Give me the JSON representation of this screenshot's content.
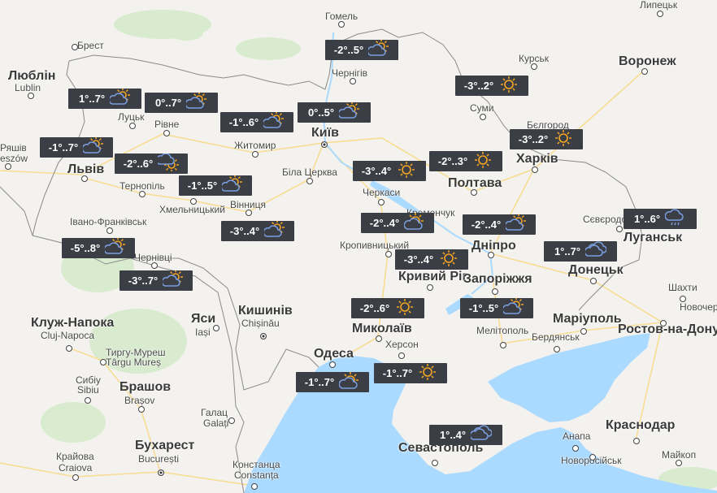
{
  "map": {
    "colors": {
      "land": "#f3f2ee",
      "water": "#aadaff",
      "forest": "#cfe7c4",
      "road": "#fbe2a0",
      "border": "#8a8a8a",
      "label_bg": "#3b3f45",
      "sun": "#f5a623",
      "cloud": "#7a9ee0"
    },
    "cities": [
      {
        "name": "Гомель"
      },
      {
        "name": "Брест"
      },
      {
        "name": "Люблін"
      },
      {
        "name": "Lublin"
      },
      {
        "name": "Луцьк"
      },
      {
        "name": "Рівне"
      },
      {
        "name": "Чернігів"
      },
      {
        "name": "Київ"
      },
      {
        "name": "Житомир"
      },
      {
        "name": "Біла Церква"
      },
      {
        "name": "Ряшів"
      },
      {
        "name": "eszów"
      },
      {
        "name": "Львів"
      },
      {
        "name": "Тернопіль"
      },
      {
        "name": "Хмельницький"
      },
      {
        "name": "Вінниця"
      },
      {
        "name": "Івано-Франківськ"
      },
      {
        "name": "Чернівці"
      },
      {
        "name": "Курськ"
      },
      {
        "name": "Воронеж"
      },
      {
        "name": "Липецьк"
      },
      {
        "name": "Суми"
      },
      {
        "name": "Бєлгород"
      },
      {
        "name": "Харків"
      },
      {
        "name": "Полтава"
      },
      {
        "name": "Черкаси"
      },
      {
        "name": "Кременчук"
      },
      {
        "name": "Сєвєродонецьк"
      },
      {
        "name": "Луганськ"
      },
      {
        "name": "Кропивницький"
      },
      {
        "name": "Дніпро"
      },
      {
        "name": "Донецьк"
      },
      {
        "name": "Кривий Ріг"
      },
      {
        "name": "Запоріжжя"
      },
      {
        "name": "Шахти"
      },
      {
        "name": "Новочеркаськ"
      },
      {
        "name": "Кишинів"
      },
      {
        "name": "Chișinău"
      },
      {
        "name": "Яси"
      },
      {
        "name": "Iași"
      },
      {
        "name": "Миколаїв"
      },
      {
        "name": "Маріуполь"
      },
      {
        "name": "Ростов-на-Дону"
      },
      {
        "name": "Мелітополь"
      },
      {
        "name": "Бердянськ"
      },
      {
        "name": "Херсон"
      },
      {
        "name": "Клуж-Напока"
      },
      {
        "name": "Cluj-Napoca"
      },
      {
        "name": "Тиргу-Муреш"
      },
      {
        "name": "Târgu Mureș"
      },
      {
        "name": "Одеса"
      },
      {
        "name": "Сибіу"
      },
      {
        "name": "Sibiu"
      },
      {
        "name": "Брашов"
      },
      {
        "name": "Brașov"
      },
      {
        "name": "Галац"
      },
      {
        "name": "Galați"
      },
      {
        "name": "Краснодар"
      },
      {
        "name": "Анапа"
      },
      {
        "name": "Бухарест"
      },
      {
        "name": "București"
      },
      {
        "name": "Севастополь"
      },
      {
        "name": "Крайова"
      },
      {
        "name": "Craiova"
      },
      {
        "name": "Констанца"
      },
      {
        "name": "Constanța"
      },
      {
        "name": "Новоросійськ"
      },
      {
        "name": "Майкоп"
      }
    ],
    "forecasts": [
      {
        "temp": "1°..7°",
        "icon": "partly-cloudy-icon"
      },
      {
        "temp": "0°..7°",
        "icon": "partly-cloudy-icon"
      },
      {
        "temp": "-1°..6°",
        "icon": "partly-cloudy-icon"
      },
      {
        "temp": "0°..5°",
        "icon": "partly-cloudy-icon"
      },
      {
        "temp": "-2°..5°",
        "icon": "partly-cloudy-icon"
      },
      {
        "temp": "-1°..7°",
        "icon": "partly-cloudy-icon"
      },
      {
        "temp": "-2°..6°",
        "icon": "cloud-sun-below-icon"
      },
      {
        "temp": "-1°..5°",
        "icon": "partly-cloudy-icon"
      },
      {
        "temp": "-3°..4°",
        "icon": "partly-cloudy-icon"
      },
      {
        "temp": "-5°..8°",
        "icon": "partly-cloudy-icon"
      },
      {
        "temp": "-3°..7°",
        "icon": "partly-cloudy-icon"
      },
      {
        "temp": "-3°..2°",
        "icon": "sun-icon"
      },
      {
        "temp": "-3°..2°",
        "icon": "sun-icon"
      },
      {
        "temp": "-2°..3°",
        "icon": "sun-icon"
      },
      {
        "temp": "-3°..4°",
        "icon": "sun-icon"
      },
      {
        "temp": "-2°..4°",
        "icon": "sun-small-cloud-icon"
      },
      {
        "temp": "-2°..4°",
        "icon": "partly-cloudy-icon"
      },
      {
        "temp": "1°..6°",
        "icon": "rain-icon"
      },
      {
        "temp": "-3°..4°",
        "icon": "sun-icon"
      },
      {
        "temp": "1°..7°",
        "icon": "cloudy-icon"
      },
      {
        "temp": "-2°..6°",
        "icon": "sun-icon"
      },
      {
        "temp": "-1°..5°",
        "icon": "partly-cloudy-icon"
      },
      {
        "temp": "-1°..7°",
        "icon": "sun-small-cloud-icon"
      },
      {
        "temp": "-1°..7°",
        "icon": "sun-icon"
      },
      {
        "temp": "1°..4°",
        "icon": "cloudy-icon"
      }
    ]
  }
}
